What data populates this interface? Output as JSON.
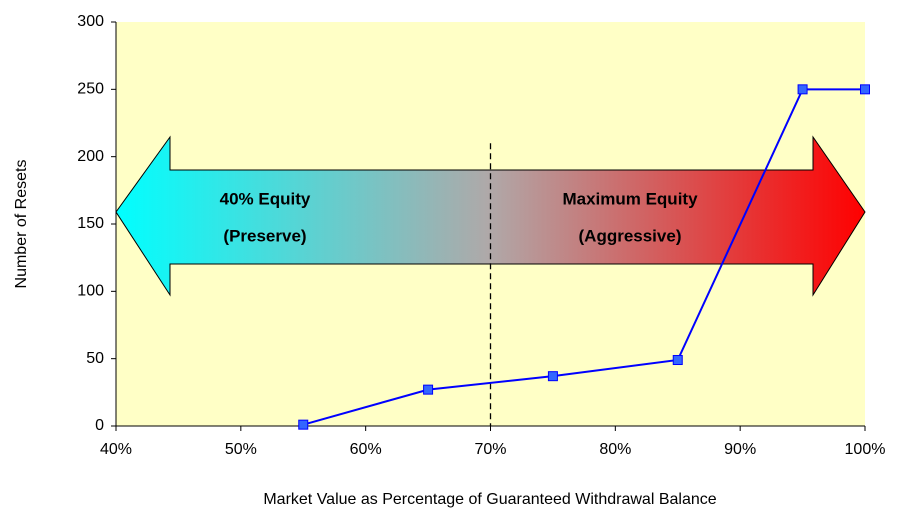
{
  "chart_data": {
    "type": "line",
    "x_label": "Market Value as Percentage of Guaranteed Withdrawal Balance",
    "y_label": "Number of Resets",
    "x": [
      55,
      65,
      75,
      85,
      95,
      100
    ],
    "series": [
      {
        "name": "Number of Resets",
        "color": "#0000ff",
        "marker_color": "#3366ff",
        "values": [
          1,
          27,
          37,
          49,
          250,
          250
        ]
      }
    ],
    "xlim": [
      40,
      100
    ],
    "xticks": [
      {
        "value": 40,
        "label": "40%"
      },
      {
        "value": 50,
        "label": "50%"
      },
      {
        "value": 60,
        "label": "60%"
      },
      {
        "value": 70,
        "label": "70%"
      },
      {
        "value": 80,
        "label": "80%"
      },
      {
        "value": 90,
        "label": "90%"
      },
      {
        "value": 100,
        "label": "100%"
      }
    ],
    "ylim": [
      0,
      300
    ],
    "yticks": [
      0,
      50,
      100,
      150,
      200,
      250,
      300
    ],
    "grid": false,
    "plot_background": "#ffffc6",
    "reference_line_x": 70,
    "annotations": {
      "left": [
        "40% Equity",
        "(Preserve)"
      ],
      "right": [
        "Maximum Equity",
        "(Aggressive)"
      ]
    }
  }
}
